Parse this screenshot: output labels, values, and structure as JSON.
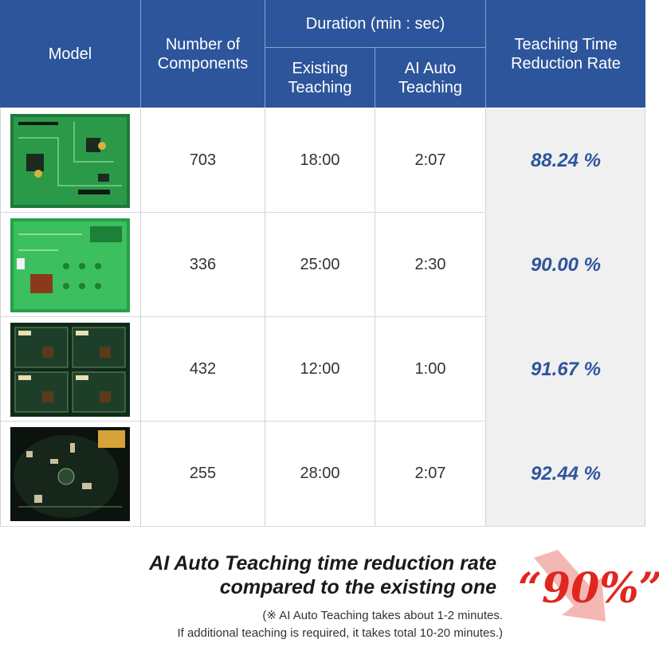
{
  "table": {
    "headers": {
      "model": "Model",
      "components_line1": "Number of",
      "components_line2": "Components",
      "duration": "Duration (min : sec)",
      "existing_line1": "Existing",
      "existing_line2": "Teaching",
      "ai_line1": "AI Auto",
      "ai_line2": "Teaching",
      "rate_line1": "Teaching Time",
      "rate_line2": "Reduction Rate"
    },
    "rows": [
      {
        "components": "703",
        "existing": "18:00",
        "ai": "2:07",
        "rate": "88.24 %"
      },
      {
        "components": "336",
        "existing": "25:00",
        "ai": "2:30",
        "rate": "90.00 %"
      },
      {
        "components": "432",
        "existing": "12:00",
        "ai": "1:00",
        "rate": "91.67 %"
      },
      {
        "components": "255",
        "existing": "28:00",
        "ai": "2:07",
        "rate": "92.44 %"
      }
    ]
  },
  "summary": {
    "line1": "AI Auto Teaching time reduction rate",
    "line2": "compared to the existing one",
    "highlight": "“90%”",
    "note_line1": "(※ AI Auto Teaching takes about 1-2 minutes.",
    "note_line2": "If additional teaching is required, it takes total 10-20 minutes.)"
  },
  "colors": {
    "header_bg": "#2d559b",
    "rate_text": "#2d559b",
    "highlight": "#e0261e",
    "arrow": "#f4b8b4"
  }
}
